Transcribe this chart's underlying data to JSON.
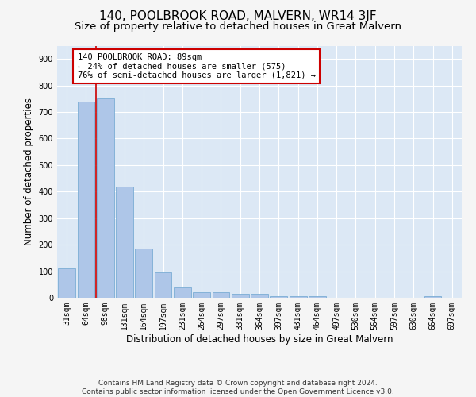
{
  "title": "140, POOLBROOK ROAD, MALVERN, WR14 3JF",
  "subtitle": "Size of property relative to detached houses in Great Malvern",
  "xlabel": "Distribution of detached houses by size in Great Malvern",
  "ylabel": "Number of detached properties",
  "categories": [
    "31sqm",
    "64sqm",
    "98sqm",
    "131sqm",
    "164sqm",
    "197sqm",
    "231sqm",
    "264sqm",
    "297sqm",
    "331sqm",
    "364sqm",
    "397sqm",
    "431sqm",
    "464sqm",
    "497sqm",
    "530sqm",
    "564sqm",
    "597sqm",
    "630sqm",
    "664sqm",
    "697sqm"
  ],
  "values": [
    110,
    740,
    750,
    420,
    185,
    95,
    40,
    20,
    20,
    15,
    15,
    5,
    5,
    5,
    0,
    0,
    0,
    0,
    0,
    5,
    0
  ],
  "bar_color": "#aec6e8",
  "bar_edge_color": "#7aadd4",
  "vline_color": "#cc0000",
  "annotation_text": "140 POOLBROOK ROAD: 89sqm\n← 24% of detached houses are smaller (575)\n76% of semi-detached houses are larger (1,821) →",
  "annotation_box_color": "#ffffff",
  "annotation_box_edge": "#cc0000",
  "ylim": [
    0,
    950
  ],
  "yticks": [
    0,
    100,
    200,
    300,
    400,
    500,
    600,
    700,
    800,
    900
  ],
  "footer_line1": "Contains HM Land Registry data © Crown copyright and database right 2024.",
  "footer_line2": "Contains public sector information licensed under the Open Government Licence v3.0.",
  "fig_bg_color": "#f5f5f5",
  "ax_bg_color": "#dce8f5",
  "grid_color": "#ffffff",
  "title_fontsize": 11,
  "subtitle_fontsize": 9.5,
  "tick_fontsize": 7,
  "label_fontsize": 8.5,
  "footer_fontsize": 6.5,
  "annotation_fontsize": 7.5
}
